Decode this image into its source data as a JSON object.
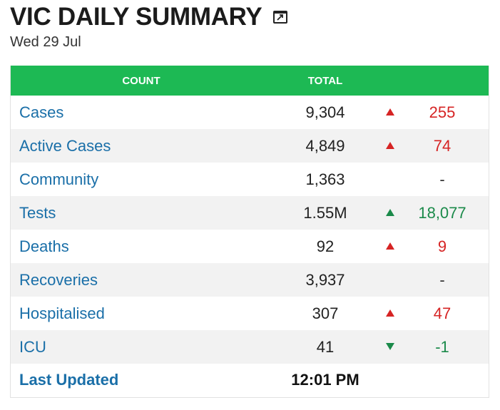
{
  "header": {
    "title": "VIC DAILY SUMMARY",
    "expand_icon": "expand-window-icon",
    "date": "Wed 29 Jul"
  },
  "table": {
    "columns": [
      "COUNT",
      "TOTAL"
    ],
    "rows": [
      {
        "label": "Cases",
        "total": "9,304",
        "trend": "up",
        "change": "255",
        "color": "#d62424"
      },
      {
        "label": "Active Cases",
        "total": "4,849",
        "trend": "up",
        "change": "74",
        "color": "#d62424"
      },
      {
        "label": "Community",
        "total": "1,363",
        "trend": "none",
        "change": "-",
        "color": "#333333"
      },
      {
        "label": "Tests",
        "total": "1.55M",
        "trend": "up",
        "change": "18,077",
        "color": "#1b8a4a"
      },
      {
        "label": "Deaths",
        "total": "92",
        "trend": "up",
        "change": "9",
        "color": "#d62424"
      },
      {
        "label": "Recoveries",
        "total": "3,937",
        "trend": "none",
        "change": "-",
        "color": "#333333"
      },
      {
        "label": "Hospitalised",
        "total": "307",
        "trend": "up",
        "change": "47",
        "color": "#d62424"
      },
      {
        "label": "ICU",
        "total": "41",
        "trend": "down",
        "change": "-1",
        "color": "#1b8a4a"
      }
    ],
    "last_updated_label": "Last Updated",
    "last_updated_value": "12:01 PM"
  },
  "colors": {
    "header_bg": "#1db954",
    "label": "#1a6fa8",
    "up_red": "#d62424",
    "green": "#1b8a4a"
  }
}
